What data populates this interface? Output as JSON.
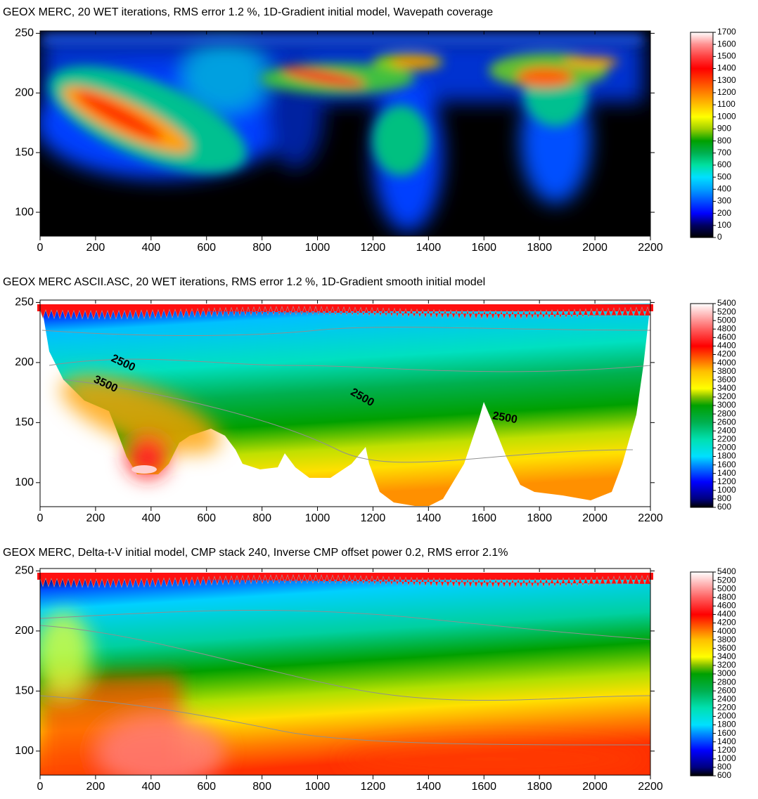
{
  "chart_data": [
    {
      "type": "heatmap",
      "title": "GEOX MERC, 20 WET iterations, RMS error 1.2 %, 1D-Gradient initial model, Wavepath coverage",
      "xlim": [
        0,
        2200
      ],
      "xticks": [
        0,
        200,
        400,
        600,
        800,
        1000,
        1200,
        1400,
        1600,
        1800,
        2000,
        2200
      ],
      "ylim": [
        80,
        252
      ],
      "yticks": [
        100,
        150,
        200,
        250
      ],
      "colorbar": {
        "lim": [
          0,
          1700
        ],
        "ticks": [
          0,
          100,
          200,
          300,
          400,
          500,
          600,
          700,
          800,
          900,
          1000,
          1100,
          1200,
          1300,
          1400,
          1500,
          1600,
          1700
        ]
      },
      "colorscale": [
        {
          "value": 0,
          "color": "#000000"
        },
        {
          "value": 100,
          "color": "#000060"
        },
        {
          "value": 200,
          "color": "#0000ff"
        },
        {
          "value": 400,
          "color": "#00a0ff"
        },
        {
          "value": 500,
          "color": "#00e0ff"
        },
        {
          "value": 600,
          "color": "#00e0a0"
        },
        {
          "value": 700,
          "color": "#00b050"
        },
        {
          "value": 800,
          "color": "#00a000"
        },
        {
          "value": 900,
          "color": "#a0d000"
        },
        {
          "value": 1000,
          "color": "#ffff00"
        },
        {
          "value": 1100,
          "color": "#ffc000"
        },
        {
          "value": 1200,
          "color": "#ff8000"
        },
        {
          "value": 1300,
          "color": "#ff4000"
        },
        {
          "value": 1400,
          "color": "#ff0000"
        },
        {
          "value": 1500,
          "color": "#ff4040"
        },
        {
          "value": 1600,
          "color": "#ff9090"
        },
        {
          "value": 1700,
          "color": "#ffffff"
        }
      ]
    },
    {
      "type": "heatmap",
      "title": "GEOX MERC ASCII.ASC, 20 WET iterations, RMS error 1.2 %, 1D-Gradient smooth initial model",
      "xlim": [
        0,
        2200
      ],
      "xticks": [
        0,
        200,
        400,
        600,
        800,
        1000,
        1200,
        1400,
        1600,
        1800,
        2000,
        2200
      ],
      "ylim": [
        80,
        252
      ],
      "yticks": [
        100,
        150,
        200,
        250
      ],
      "colorbar": {
        "lim": [
          600,
          5400
        ],
        "ticks": [
          600,
          800,
          1000,
          1200,
          1400,
          1600,
          1800,
          2000,
          2200,
          2400,
          2600,
          2800,
          3000,
          3200,
          3400,
          3600,
          3800,
          4000,
          4200,
          4400,
          4600,
          4800,
          5000,
          5200,
          5400
        ]
      },
      "colorscale": [
        {
          "value": 600,
          "color": "#000000"
        },
        {
          "value": 800,
          "color": "#000080"
        },
        {
          "value": 1200,
          "color": "#0000ff"
        },
        {
          "value": 1600,
          "color": "#0090ff"
        },
        {
          "value": 1800,
          "color": "#00e0ff"
        },
        {
          "value": 2200,
          "color": "#00e0b0"
        },
        {
          "value": 2600,
          "color": "#00b050"
        },
        {
          "value": 3000,
          "color": "#00a000"
        },
        {
          "value": 3200,
          "color": "#80c000"
        },
        {
          "value": 3400,
          "color": "#ffff00"
        },
        {
          "value": 3800,
          "color": "#ffc000"
        },
        {
          "value": 4000,
          "color": "#ff8000"
        },
        {
          "value": 4400,
          "color": "#ff0000"
        },
        {
          "value": 4800,
          "color": "#ff6060"
        },
        {
          "value": 5400,
          "color": "#ffffff"
        }
      ],
      "annotations": [
        "2500",
        "3500",
        "2500",
        "2500"
      ]
    },
    {
      "type": "heatmap",
      "title": "GEOX MERC, Delta-t-V initial model, CMP stack 240, Inverse CMP offset power 0.2, RMS error 2.1%",
      "xlim": [
        0,
        2200
      ],
      "xticks": [
        0,
        200,
        400,
        600,
        800,
        1000,
        1200,
        1400,
        1600,
        1800,
        2000,
        2200
      ],
      "ylim": [
        80,
        252
      ],
      "yticks": [
        100,
        150,
        200,
        250
      ],
      "colorbar": {
        "lim": [
          600,
          5400
        ],
        "ticks": [
          600,
          800,
          1000,
          1200,
          1400,
          1600,
          1800,
          2000,
          2200,
          2400,
          2600,
          2800,
          3000,
          3200,
          3400,
          3600,
          3800,
          4000,
          4200,
          4400,
          4600,
          4800,
          5000,
          5200,
          5400
        ]
      },
      "colorscale": [
        {
          "value": 600,
          "color": "#000000"
        },
        {
          "value": 800,
          "color": "#000080"
        },
        {
          "value": 1200,
          "color": "#0000ff"
        },
        {
          "value": 1600,
          "color": "#0090ff"
        },
        {
          "value": 1800,
          "color": "#00e0ff"
        },
        {
          "value": 2200,
          "color": "#00e0b0"
        },
        {
          "value": 2600,
          "color": "#00b050"
        },
        {
          "value": 3000,
          "color": "#00a000"
        },
        {
          "value": 3200,
          "color": "#80c000"
        },
        {
          "value": 3400,
          "color": "#ffff00"
        },
        {
          "value": 3800,
          "color": "#ffc000"
        },
        {
          "value": 4000,
          "color": "#ff8000"
        },
        {
          "value": 4400,
          "color": "#ff0000"
        },
        {
          "value": 4800,
          "color": "#ff6060"
        },
        {
          "value": 5400,
          "color": "#ffffff"
        }
      ]
    }
  ]
}
